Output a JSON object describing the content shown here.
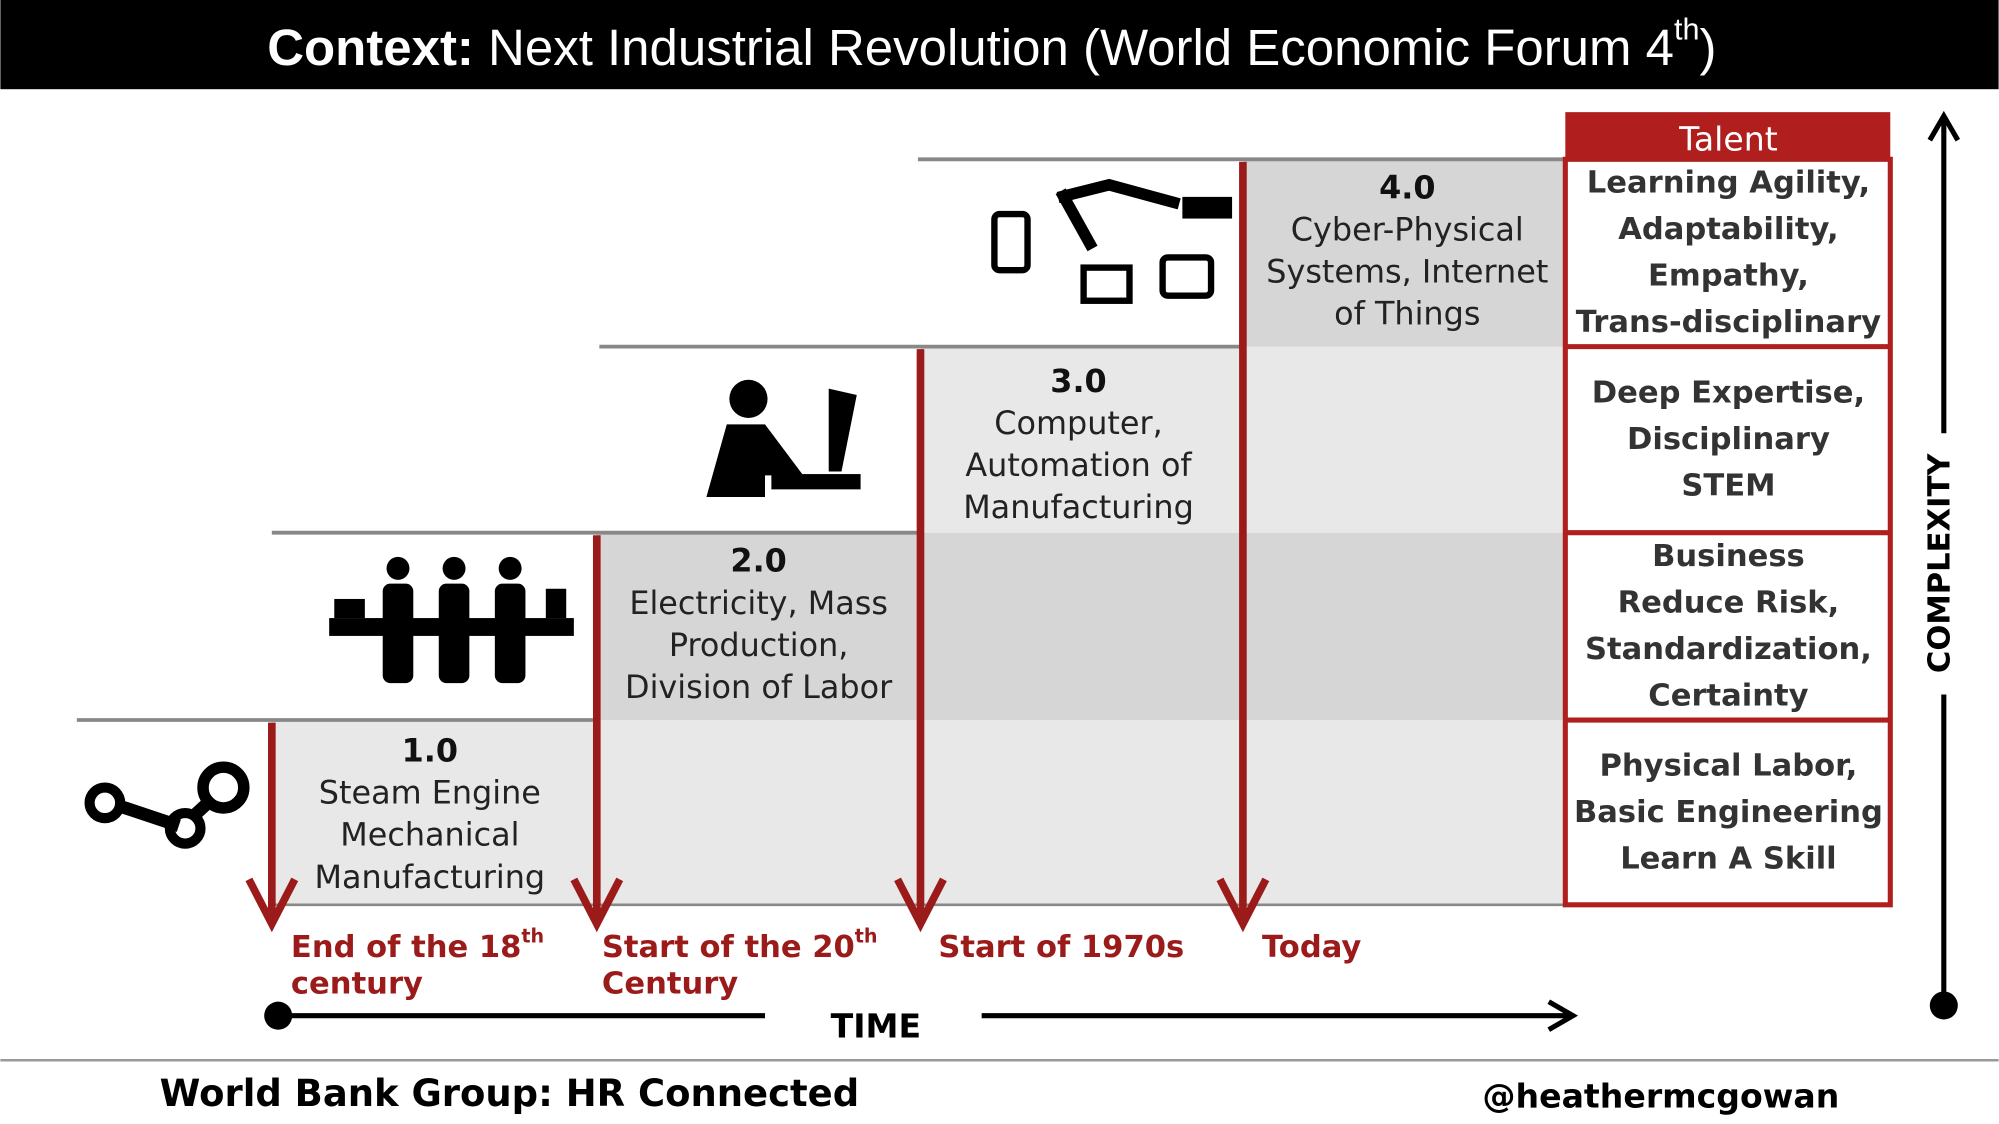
{
  "header": {
    "title_bold": "Context:",
    "title_text": " Next Industrial Revolution (World Economic Forum 4",
    "title_sup": "th",
    "title_end": ")"
  },
  "stages": [
    {
      "number": "1.0",
      "lines": [
        "Steam Engine",
        "Mechanical",
        "Manufacturing"
      ]
    },
    {
      "number": "2.0",
      "lines": [
        "Electricity, Mass",
        "Production,",
        "Division of Labor"
      ]
    },
    {
      "number": "3.0",
      "lines": [
        "Computer,",
        "Automation of",
        "Manufacturing"
      ]
    },
    {
      "number": "4.0",
      "lines": [
        "Cyber-Physical",
        "Systems, Internet",
        "of Things"
      ]
    }
  ],
  "eras": [
    {
      "text": "End of the 18",
      "sup": "th",
      "line2": "century"
    },
    {
      "text": "Start of the 20",
      "sup": "th",
      "line2": "Century"
    },
    {
      "text": "Start of 1970s"
    },
    {
      "text": "Today"
    }
  ],
  "talent": {
    "header": "Talent",
    "rows": [
      [
        "Physical Labor,",
        "Basic Engineering",
        "Learn A Skill"
      ],
      [
        "Business",
        "Reduce Risk,",
        "Standardization,",
        "Certainty"
      ],
      [
        "Deep Expertise,",
        "Disciplinary",
        "STEM"
      ],
      [
        "Learning Agility,",
        "Adaptability,",
        "Empathy,",
        "Trans-disciplinary"
      ]
    ]
  },
  "axes": {
    "time": "TIME",
    "complexity": "COMPLEXITY"
  },
  "footer": {
    "left": "World Bank Group: HR Connected",
    "right": "@heathermcgowan"
  }
}
